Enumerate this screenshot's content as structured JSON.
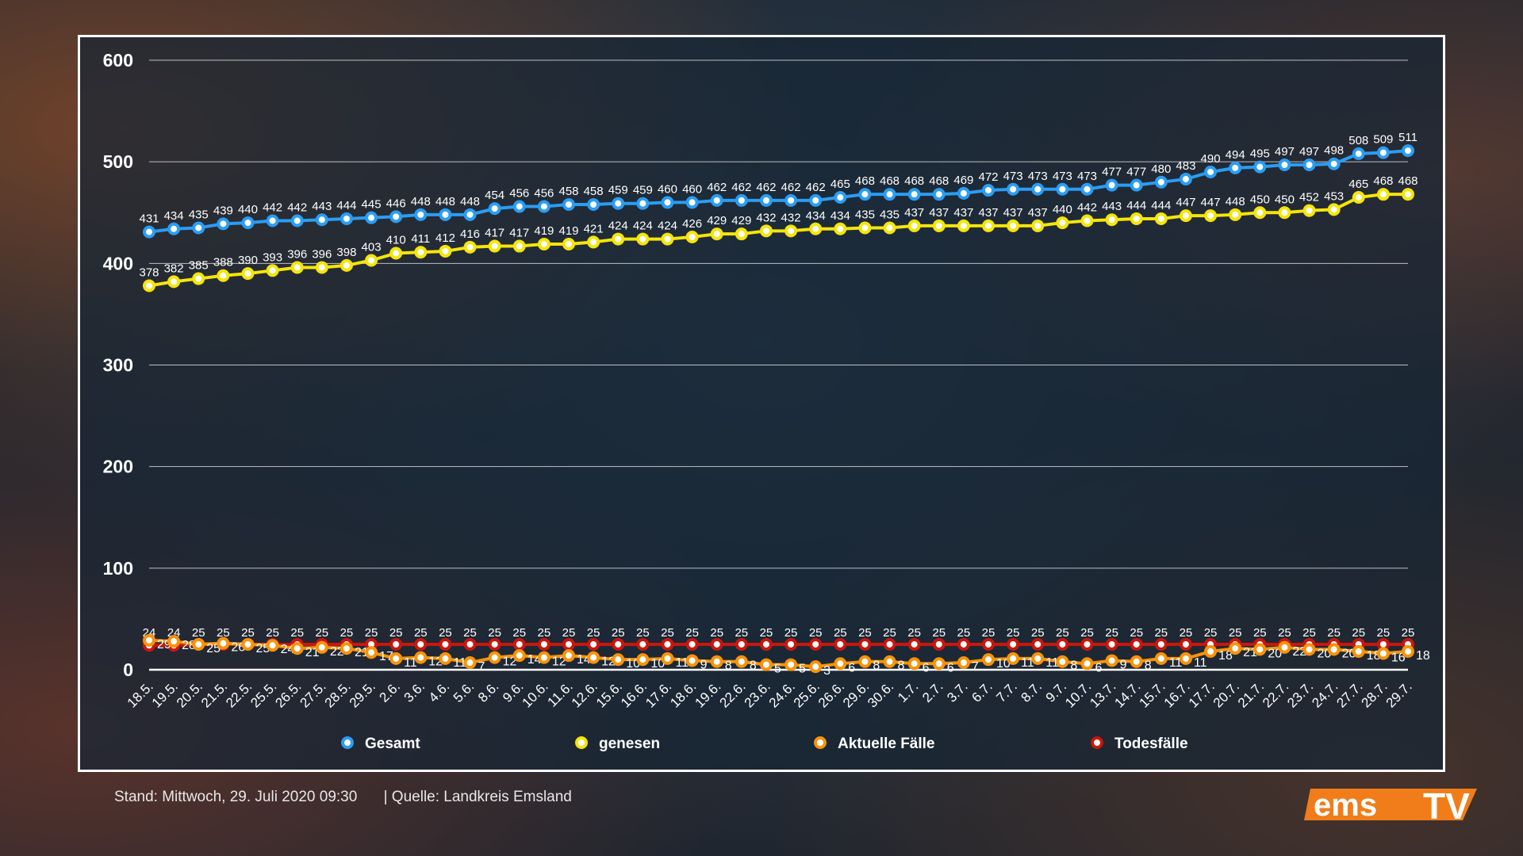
{
  "chart_data": {
    "type": "line",
    "categories": [
      "18.5.",
      "19.5.",
      "20.5.",
      "21.5.",
      "22.5.",
      "25.5.",
      "26.5.",
      "27.5.",
      "28.5.",
      "29.5.",
      "2.6.",
      "3.6.",
      "4.6.",
      "5.6.",
      "8.6.",
      "9.6.",
      "10.6.",
      "11.6.",
      "12.6.",
      "15.6.",
      "16.6.",
      "17.6.",
      "18.6.",
      "19.6.",
      "22.6.",
      "23.6.",
      "24.6.",
      "25.6.",
      "26.6.",
      "29.6.",
      "30.6.",
      "1.7.",
      "2.7.",
      "3.7.",
      "6.7.",
      "7.7.",
      "8.7.",
      "9.7.",
      "10.7.",
      "13.7.",
      "14.7.",
      "15.7.",
      "16.7.",
      "17.7.",
      "20.7.",
      "21.7.",
      "22.7.",
      "23.7.",
      "24.7.",
      "27.7.",
      "28.7.",
      "29.7."
    ],
    "series": [
      {
        "name": "Gesamt",
        "color": "#2a9df4",
        "values": [
          431,
          434,
          435,
          439,
          440,
          442,
          442,
          443,
          444,
          445,
          446,
          448,
          448,
          448,
          454,
          456,
          456,
          458,
          458,
          459,
          459,
          460,
          460,
          462,
          462,
          462,
          462,
          462,
          465,
          468,
          468,
          468,
          468,
          469,
          472,
          473,
          473,
          473,
          473,
          477,
          477,
          480,
          483,
          490,
          494,
          495,
          497,
          497,
          498,
          508,
          509,
          511
        ]
      },
      {
        "name": "genesen",
        "color": "#f5e50a",
        "values": [
          378,
          382,
          385,
          388,
          390,
          393,
          396,
          396,
          398,
          403,
          410,
          411,
          412,
          416,
          417,
          417,
          419,
          419,
          421,
          424,
          424,
          424,
          426,
          429,
          429,
          432,
          432,
          434,
          434,
          435,
          435,
          437,
          437,
          437,
          437,
          437,
          437,
          440,
          442,
          443,
          444,
          444,
          447,
          447,
          448,
          450,
          450,
          452,
          453,
          465,
          468,
          468
        ]
      },
      {
        "name": "Aktuelle Fälle",
        "color": "#f7930a",
        "values": [
          29,
          28,
          25,
          26,
          25,
          24,
          21,
          22,
          21,
          17,
          11,
          12,
          11,
          7,
          12,
          14,
          12,
          14,
          12,
          10,
          10,
          11,
          9,
          8,
          8,
          5,
          5,
          3,
          6,
          8,
          8,
          6,
          6,
          7,
          10,
          11,
          11,
          8,
          6,
          9,
          8,
          11,
          11,
          18,
          21,
          20,
          22,
          20,
          20,
          18,
          16,
          18
        ]
      },
      {
        "name": "Todesfälle",
        "color": "#c8170e",
        "values": [
          24,
          24,
          25,
          25,
          25,
          25,
          25,
          25,
          25,
          25,
          25,
          25,
          25,
          25,
          25,
          25,
          25,
          25,
          25,
          25,
          25,
          25,
          25,
          25,
          25,
          25,
          25,
          25,
          25,
          25,
          25,
          25,
          25,
          25,
          25,
          25,
          25,
          25,
          25,
          25,
          25,
          25,
          25,
          25,
          25,
          25,
          25,
          25,
          25,
          25,
          25,
          25
        ]
      }
    ],
    "y_ticks": [
      "0",
      "100",
      "200",
      "300",
      "400",
      "500",
      "600"
    ],
    "ylim": [
      0,
      600
    ],
    "grid": true,
    "legend_position": "bottom"
  },
  "footer": {
    "stand": "Stand:  Mittwoch, 29. Juli 2020 09:30",
    "quelle": "|  Quelle:  Landkreis Emsland"
  },
  "logo": {
    "text": "ems TV",
    "color": "#f07d1a"
  }
}
